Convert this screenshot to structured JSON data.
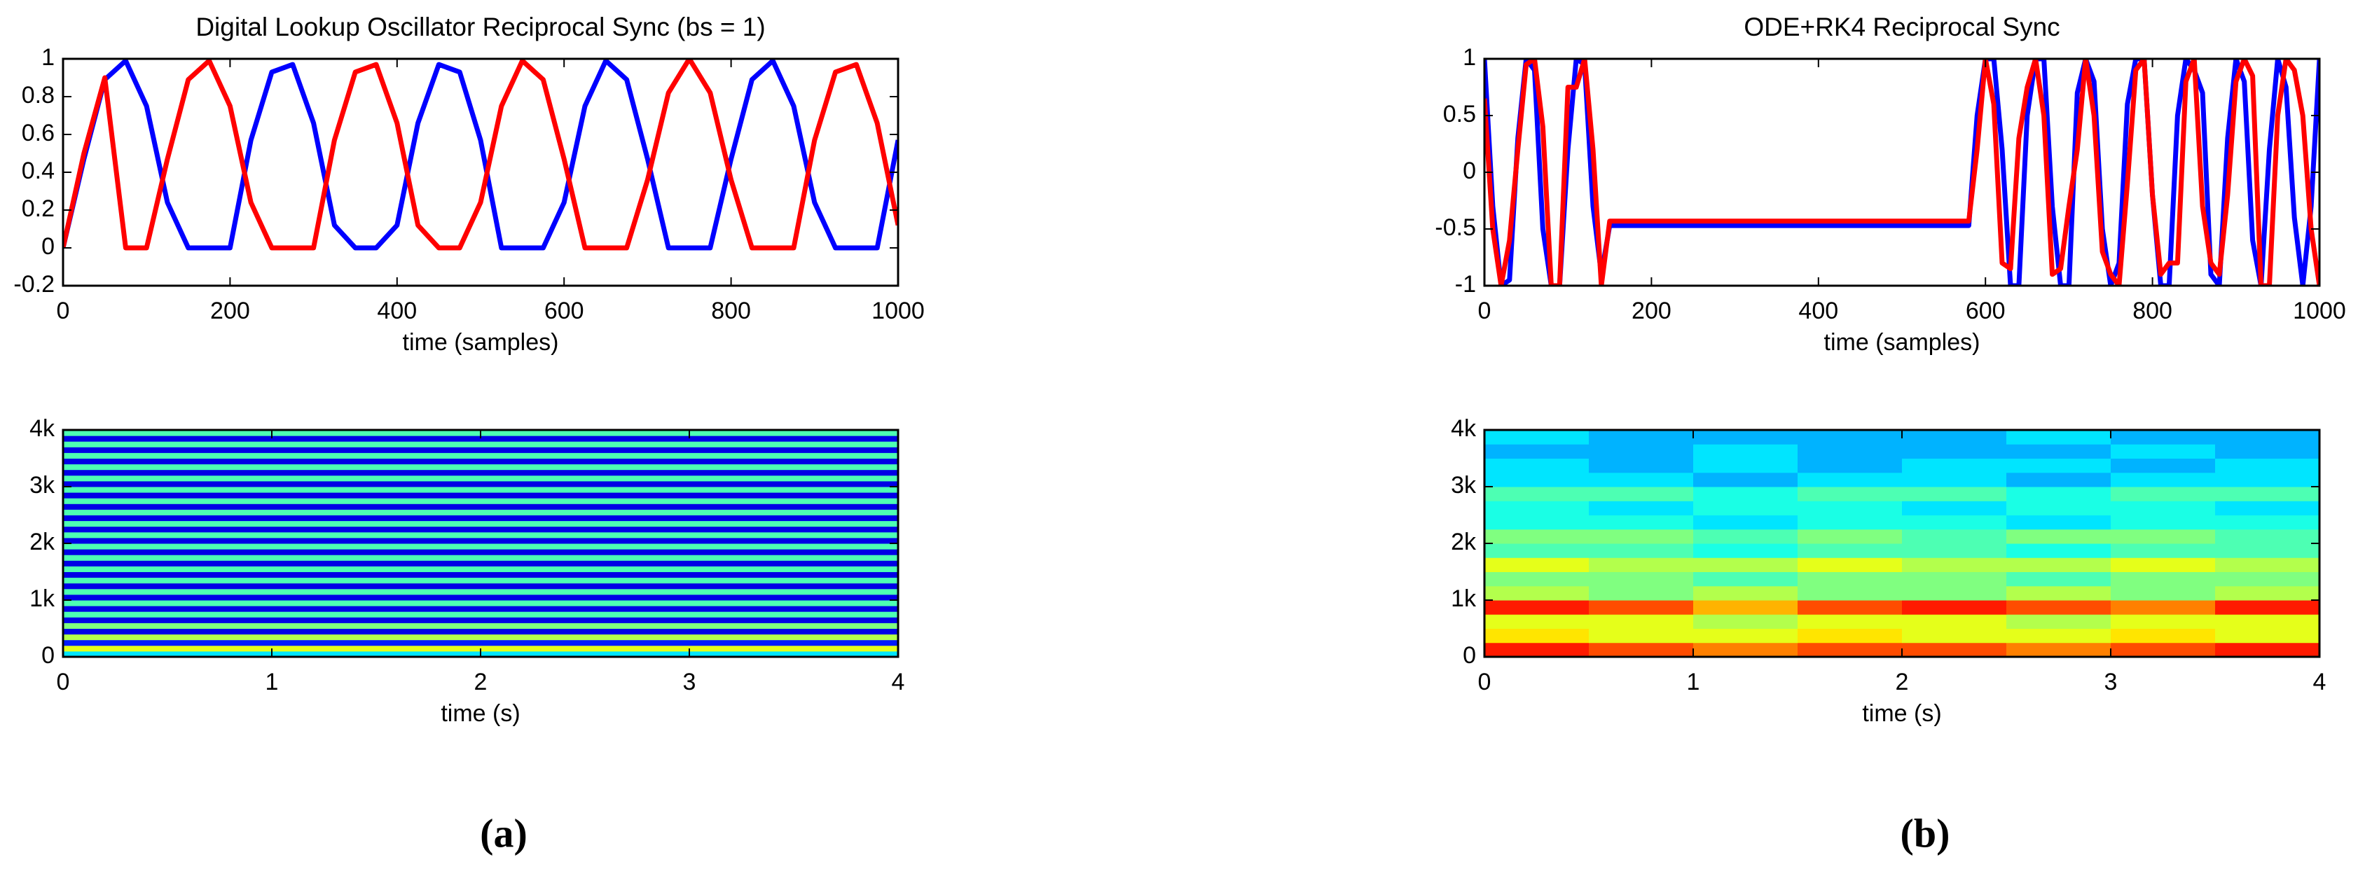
{
  "figure": {
    "panels": [
      "(a)",
      "(b)"
    ]
  },
  "chart_data": [
    {
      "type": "line",
      "title": "Digital Lookup Oscillator Reciprocal Sync (bs = 1)",
      "xlabel": "time (samples)",
      "x": [
        0,
        25,
        50,
        75,
        100,
        125,
        150,
        175,
        200,
        225,
        250,
        275,
        300,
        325,
        350,
        375,
        400,
        425,
        450,
        475,
        500,
        525,
        550,
        575,
        600,
        625,
        650,
        675,
        700,
        725,
        750,
        775,
        800,
        825,
        850,
        875,
        900,
        925,
        950,
        975,
        1000
      ],
      "series": [
        {
          "color": "#0000ff",
          "values": [
            0,
            0.47,
            0.89,
            0.99,
            0.75,
            0.24,
            0,
            0,
            0,
            0.57,
            0.93,
            0.97,
            0.66,
            0.12,
            0,
            0,
            0.12,
            0.66,
            0.97,
            0.93,
            0.57,
            0,
            0,
            0,
            0.24,
            0.75,
            0.99,
            0.89,
            0.47,
            0,
            0,
            0,
            0.47,
            0.89,
            0.99,
            0.75,
            0.24,
            0,
            0,
            0,
            0.57
          ]
        },
        {
          "color": "#ff0000",
          "values": [
            0,
            0.5,
            0.9,
            0,
            0,
            0.47,
            0.89,
            0.99,
            0.75,
            0.24,
            0,
            0,
            0,
            0.57,
            0.93,
            0.97,
            0.66,
            0.12,
            0,
            0,
            0.24,
            0.75,
            0.99,
            0.89,
            0.47,
            0,
            0,
            0,
            0.36,
            0.82,
            1,
            0.82,
            0.36,
            0,
            0,
            0,
            0.57,
            0.93,
            0.97,
            0.66,
            0.12
          ]
        }
      ],
      "xlim": [
        0,
        1000
      ],
      "ylim": [
        -0.2,
        1
      ],
      "xticks": [
        0,
        200,
        400,
        600,
        800,
        1000
      ],
      "yticks": [
        -0.2,
        0,
        0.2,
        0.4,
        0.6,
        0.8,
        1
      ]
    },
    {
      "type": "line",
      "title": "ODE+RK4 Reciprocal Sync",
      "xlabel": "time (samples)",
      "x": [
        0,
        10,
        20,
        30,
        40,
        50,
        60,
        70,
        80,
        90,
        100,
        110,
        120,
        130,
        140,
        150,
        160,
        170,
        180,
        190,
        200,
        210,
        220,
        230,
        240,
        250,
        260,
        270,
        280,
        290,
        300,
        310,
        320,
        330,
        340,
        350,
        360,
        370,
        380,
        390,
        400,
        410,
        420,
        430,
        440,
        450,
        460,
        470,
        480,
        490,
        500,
        510,
        520,
        530,
        540,
        550,
        560,
        570,
        580,
        590,
        600,
        610,
        620,
        630,
        640,
        650,
        660,
        670,
        680,
        690,
        700,
        710,
        720,
        730,
        740,
        750,
        760,
        770,
        780,
        790,
        800,
        810,
        820,
        830,
        840,
        850,
        860,
        870,
        880,
        890,
        900,
        910,
        920,
        930,
        940,
        950,
        960,
        970,
        980,
        990,
        1000
      ],
      "series": [
        {
          "color": "#0000ff",
          "values": [
            1,
            -0.3,
            -1,
            -0.95,
            0.3,
            1,
            0.9,
            -0.5,
            -1,
            -1,
            0.2,
            1,
            0.95,
            -0.3,
            -0.9,
            -0.47,
            -0.47,
            -0.47,
            -0.47,
            -0.47,
            -0.47,
            -0.47,
            -0.47,
            -0.47,
            -0.47,
            -0.47,
            -0.47,
            -0.47,
            -0.47,
            -0.47,
            -0.47,
            -0.47,
            -0.47,
            -0.47,
            -0.47,
            -0.47,
            -0.47,
            -0.47,
            -0.47,
            -0.47,
            -0.47,
            -0.47,
            -0.47,
            -0.47,
            -0.47,
            -0.47,
            -0.47,
            -0.47,
            -0.47,
            -0.47,
            -0.47,
            -0.47,
            -0.47,
            -0.47,
            -0.47,
            -0.47,
            -0.47,
            -0.47,
            -0.47,
            0.5,
            1,
            1,
            0.2,
            -1,
            -1,
            0.5,
            1,
            1,
            -0.3,
            -1,
            -1,
            0.7,
            1,
            0.8,
            -0.5,
            -1,
            -0.8,
            0.6,
            1,
            1,
            -0.2,
            -1,
            -1,
            0.5,
            1,
            0.9,
            0.7,
            -0.9,
            -1,
            0.3,
            1,
            0.8,
            -0.6,
            -1,
            0.2,
            1,
            0.75,
            -0.4,
            -1,
            -0.3,
            1
          ]
        },
        {
          "color": "#ff0000",
          "values": [
            0.65,
            -0.5,
            -1,
            -0.6,
            0.2,
            0.95,
            1,
            0.4,
            -1,
            -1,
            0.75,
            0.75,
            1,
            0.2,
            -1,
            -0.43,
            -0.43,
            -0.43,
            -0.43,
            -0.43,
            -0.43,
            -0.43,
            -0.43,
            -0.43,
            -0.43,
            -0.43,
            -0.43,
            -0.43,
            -0.43,
            -0.43,
            -0.43,
            -0.43,
            -0.43,
            -0.43,
            -0.43,
            -0.43,
            -0.43,
            -0.43,
            -0.43,
            -0.43,
            -0.43,
            -0.43,
            -0.43,
            -0.43,
            -0.43,
            -0.43,
            -0.43,
            -0.43,
            -0.43,
            -0.43,
            -0.43,
            -0.43,
            -0.43,
            -0.43,
            -0.43,
            -0.43,
            -0.43,
            -0.43,
            -0.43,
            0.2,
            1,
            0.6,
            -0.8,
            -0.85,
            0.3,
            0.75,
            1,
            0.5,
            -0.9,
            -0.85,
            -0.3,
            0.2,
            1,
            0.5,
            -0.7,
            -0.9,
            -1,
            -0.1,
            0.9,
            1,
            -0.2,
            -0.9,
            -0.8,
            -0.8,
            0.8,
            1,
            -0.3,
            -0.8,
            -0.9,
            -0.2,
            0.8,
            1,
            0.85,
            -1,
            -1,
            0.5,
            1,
            0.9,
            0.5,
            -0.5,
            -1
          ]
        }
      ],
      "xlim": [
        0,
        1000
      ],
      "ylim": [
        -1,
        1
      ],
      "xticks": [
        0,
        200,
        400,
        600,
        800,
        1000
      ],
      "yticks": [
        -1,
        -0.5,
        0,
        0.5,
        1
      ]
    },
    {
      "type": "heatmap",
      "xlabel": "time (s)",
      "colormap": "jet",
      "clim": [
        0,
        1
      ],
      "z": [
        [
          0.35
        ],
        [
          0.6
        ],
        [
          0.15
        ],
        [
          0.55
        ],
        [
          0.1
        ],
        [
          0.5
        ],
        [
          0.1
        ],
        [
          0.45
        ],
        [
          0.1
        ],
        [
          0.45
        ],
        [
          0.1
        ],
        [
          0.45
        ],
        [
          0.1
        ],
        [
          0.45
        ],
        [
          0.1
        ],
        [
          0.45
        ],
        [
          0.1
        ],
        [
          0.45
        ],
        [
          0.1
        ],
        [
          0.45
        ],
        [
          0.1
        ],
        [
          0.45
        ],
        [
          0.1
        ],
        [
          0.45
        ],
        [
          0.1
        ],
        [
          0.45
        ],
        [
          0.1
        ],
        [
          0.45
        ],
        [
          0.1
        ],
        [
          0.45
        ],
        [
          0.1
        ],
        [
          0.45
        ],
        [
          0.1
        ],
        [
          0.45
        ],
        [
          0.1
        ],
        [
          0.45
        ],
        [
          0.1
        ],
        [
          0.45
        ],
        [
          0.1
        ],
        [
          0.45
        ]
      ],
      "xlim": [
        0,
        4
      ],
      "ylim": [
        0,
        4000
      ],
      "xticks": [
        0,
        1,
        2,
        3,
        4
      ],
      "yticks": [
        0,
        {
          "value": 1000,
          "label": "1k"
        },
        {
          "value": 2000,
          "label": "2k"
        },
        {
          "value": 3000,
          "label": "3k"
        },
        {
          "value": 4000,
          "label": "4k"
        }
      ]
    },
    {
      "type": "heatmap",
      "xlabel": "time (s)",
      "colormap": "jet",
      "clim": [
        0,
        1
      ],
      "z": [
        [
          0.85,
          0.8,
          0.75,
          0.8,
          0.8,
          0.75,
          0.8,
          0.85
        ],
        [
          0.65,
          0.6,
          0.6,
          0.65,
          0.6,
          0.6,
          0.65,
          0.6
        ],
        [
          0.6,
          0.6,
          0.55,
          0.6,
          0.6,
          0.55,
          0.6,
          0.6
        ],
        [
          0.85,
          0.8,
          0.7,
          0.8,
          0.85,
          0.8,
          0.75,
          0.85
        ],
        [
          0.55,
          0.5,
          0.55,
          0.5,
          0.5,
          0.55,
          0.5,
          0.55
        ],
        [
          0.5,
          0.5,
          0.45,
          0.5,
          0.5,
          0.45,
          0.5,
          0.5
        ],
        [
          0.6,
          0.55,
          0.55,
          0.6,
          0.55,
          0.55,
          0.6,
          0.55
        ],
        [
          0.45,
          0.45,
          0.4,
          0.45,
          0.45,
          0.4,
          0.45,
          0.45
        ],
        [
          0.5,
          0.5,
          0.45,
          0.5,
          0.45,
          0.5,
          0.5,
          0.45
        ],
        [
          0.4,
          0.4,
          0.35,
          0.4,
          0.4,
          0.35,
          0.4,
          0.4
        ],
        [
          0.4,
          0.35,
          0.4,
          0.4,
          0.35,
          0.4,
          0.4,
          0.35
        ],
        [
          0.45,
          0.45,
          0.4,
          0.45,
          0.45,
          0.4,
          0.45,
          0.45
        ],
        [
          0.35,
          0.35,
          0.3,
          0.35,
          0.35,
          0.3,
          0.35,
          0.35
        ],
        [
          0.35,
          0.3,
          0.35,
          0.3,
          0.35,
          0.35,
          0.3,
          0.35
        ],
        [
          0.3,
          0.3,
          0.35,
          0.3,
          0.3,
          0.3,
          0.35,
          0.3
        ],
        [
          0.35,
          0.3,
          0.3,
          0.3,
          0.3,
          0.35,
          0.3,
          0.3
        ]
      ],
      "xlim": [
        0,
        4
      ],
      "ylim": [
        0,
        4000
      ],
      "xticks": [
        0,
        1,
        2,
        3,
        4
      ],
      "yticks": [
        0,
        {
          "value": 1000,
          "label": "1k"
        },
        {
          "value": 2000,
          "label": "2k"
        },
        {
          "value": 3000,
          "label": "3k"
        },
        {
          "value": 4000,
          "label": "4k"
        }
      ]
    }
  ]
}
